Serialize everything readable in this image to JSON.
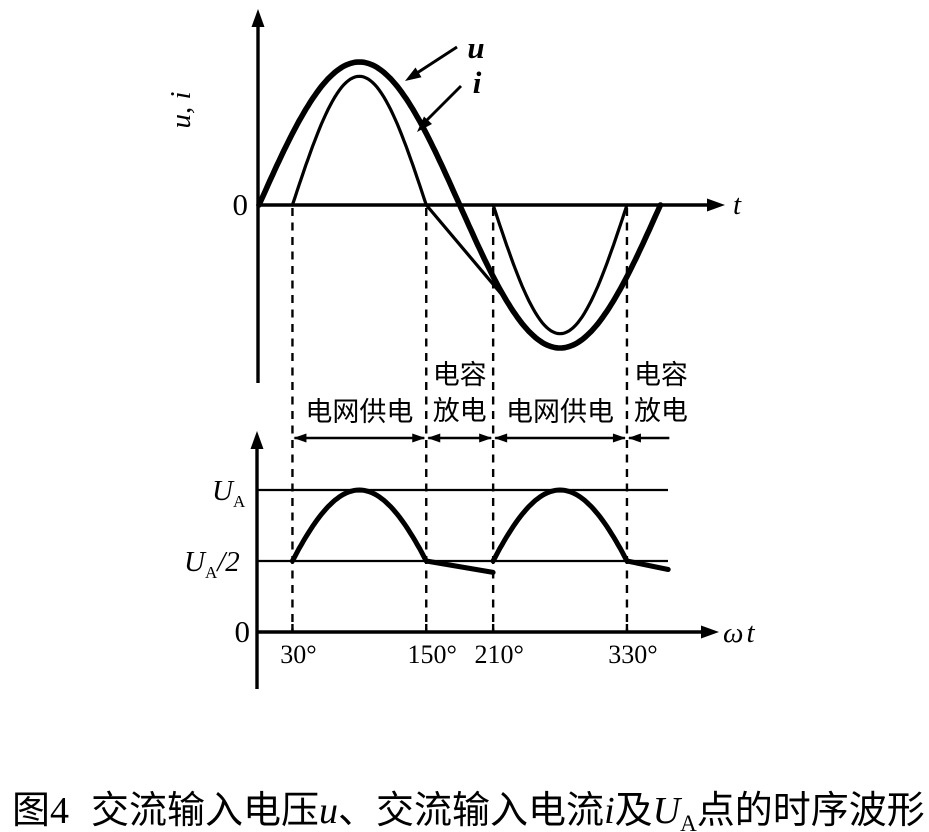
{
  "page": {
    "background": "#ffffff",
    "ink": "#000000"
  },
  "labels": {
    "top_ylabel": "u, i",
    "top_origin": "0",
    "top_xlabel": "t",
    "u_tag": "u",
    "i_tag": "i",
    "ua_base": "U",
    "ua_sub": "A",
    "ua_half_base": "U",
    "ua_half_sub": "A",
    "ua_half_suffix": "/2",
    "bottom_origin": "0",
    "omega": "ω",
    "omega_t": "t"
  },
  "band": {
    "segments": [
      {
        "lines": [
          "电网供电"
        ],
        "from_deg": 30,
        "to_deg": 150,
        "arrow": "double"
      },
      {
        "lines": [
          "电容",
          "放电"
        ],
        "from_deg": 150,
        "to_deg": 210,
        "arrow": "double"
      },
      {
        "lines": [
          "电网供电"
        ],
        "from_deg": 210,
        "to_deg": 330,
        "arrow": "double"
      },
      {
        "lines": [
          "电容",
          "放电"
        ],
        "from_deg": 330,
        "to_deg": 368,
        "arrow": "left-only"
      }
    ]
  },
  "chart_data": [
    {
      "id": "top-input-waveforms",
      "type": "line",
      "title": "",
      "ylabel": "u, i",
      "xlabel": "t",
      "origin_label": "0",
      "x_unit": "electrical degrees",
      "x_range_deg": [
        0,
        360
      ],
      "key_angles_deg": [
        30,
        150,
        210,
        330
      ],
      "series": [
        {
          "name": "u",
          "label": "u",
          "shape": "sine",
          "relative_amplitude": 1.0,
          "deg_range": [
            0,
            360
          ],
          "stroke": "thick",
          "description": "AC input voltage, full sine wave"
        },
        {
          "name": "i",
          "label": "i",
          "shape": "piecewise",
          "relative_amplitude": 0.9,
          "stroke": "thin",
          "description": "AC input current, conducts only while the grid supplies power",
          "segments": [
            {
              "shape": "half-sine",
              "polarity": "positive",
              "deg_range": [
                30,
                150
              ]
            },
            {
              "shape": "linear",
              "deg_range": [
                150,
                221
              ],
              "note": "thin straight run-off that meets the u curve near 210°"
            },
            {
              "shape": "half-sine",
              "polarity": "negative",
              "deg_range": [
                210,
                330
              ]
            }
          ]
        }
      ],
      "annotations": [
        {
          "label": "u",
          "points_to": "u curve"
        },
        {
          "label": "i",
          "points_to": "i curve"
        }
      ]
    },
    {
      "id": "bottom-ua-waveform",
      "type": "line",
      "ylabel_levels": [
        {
          "base": "U",
          "sub": "A"
        },
        {
          "base": "U",
          "sub": "A",
          "suffix": "/2"
        }
      ],
      "xlabel": "ωt",
      "origin_label": "0",
      "x_ticks_deg": [
        30,
        150,
        210,
        330
      ],
      "x_tick_labels": [
        "30°",
        "150°",
        "210°",
        "330°"
      ],
      "levels": {
        "UA": 1.0,
        "UA_half": 0.5
      },
      "waveform_segments": [
        {
          "shape": "abs-sine",
          "deg_range": [
            30,
            150
          ],
          "from_level": 0.5,
          "peak_level": 1.0,
          "to_level": 0.5
        },
        {
          "shape": "linear-discharge",
          "deg_range": [
            150,
            210
          ],
          "from_level": 0.5,
          "to_level": 0.42
        },
        {
          "shape": "abs-sine",
          "deg_range": [
            210,
            330
          ],
          "from_level": 0.5,
          "peak_level": 1.0,
          "to_level": 0.5
        },
        {
          "shape": "linear-discharge",
          "deg_range": [
            330,
            367
          ],
          "from_level": 0.5,
          "to_level": 0.44
        }
      ]
    }
  ],
  "caption": {
    "parts": [
      {
        "t": "图4",
        "cls": "fignum"
      },
      {
        "t": "交流输入电压",
        "cls": "cjk"
      },
      {
        "t": "u",
        "cls": "var"
      },
      {
        "t": "、",
        "cls": "cjk"
      },
      {
        "t": "交流输入电流",
        "cls": "cjk"
      },
      {
        "t": "i",
        "cls": "var"
      },
      {
        "t": "及",
        "cls": "cjk"
      },
      {
        "t": "U",
        "cls": "var"
      },
      {
        "t": "A",
        "cls": "sub"
      },
      {
        "t": "点的时序波形",
        "cls": "cjk"
      }
    ]
  }
}
